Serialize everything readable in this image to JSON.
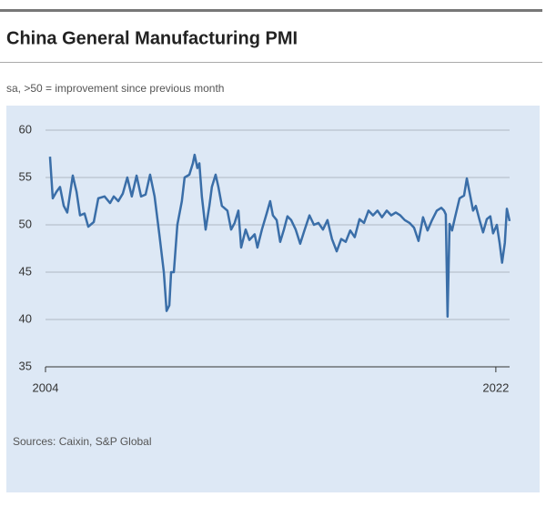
{
  "chart_data": {
    "type": "line",
    "title": "China General Manufacturing PMI",
    "subtitle": "sa, >50 = improvement since previous month",
    "source": "Sources: Caixin, S&P Global",
    "xlim": [
      2004,
      2022.55
    ],
    "xticks": [
      2004,
      2022
    ],
    "ylim": [
      35,
      60
    ],
    "yticks": [
      35,
      40,
      45,
      50,
      55,
      60
    ],
    "grid": true,
    "series": [
      {
        "name": "PMI",
        "color": "#3a6ea8",
        "x": [
          2004.18,
          2004.29,
          2004.44,
          2004.58,
          2004.73,
          2004.87,
          2005.09,
          2005.24,
          2005.38,
          2005.56,
          2005.71,
          2005.93,
          2006.11,
          2006.36,
          2006.58,
          2006.73,
          2006.91,
          2007.09,
          2007.27,
          2007.45,
          2007.64,
          2007.82,
          2008.0,
          2008.18,
          2008.36,
          2008.55,
          2008.73,
          2008.84,
          2008.95,
          2009.02,
          2009.13,
          2009.27,
          2009.45,
          2009.56,
          2009.75,
          2009.89,
          2009.96,
          2010.07,
          2010.15,
          2010.25,
          2010.4,
          2010.55,
          2010.65,
          2010.8,
          2010.91,
          2011.05,
          2011.27,
          2011.42,
          2011.56,
          2011.71,
          2011.82,
          2012.0,
          2012.15,
          2012.36,
          2012.47,
          2012.65,
          2012.84,
          2012.98,
          2013.09,
          2013.24,
          2013.38,
          2013.53,
          2013.67,
          2013.82,
          2014.0,
          2014.18,
          2014.36,
          2014.55,
          2014.73,
          2014.91,
          2015.09,
          2015.27,
          2015.45,
          2015.64,
          2015.82,
          2016.0,
          2016.18,
          2016.36,
          2016.55,
          2016.73,
          2016.91,
          2017.09,
          2017.27,
          2017.45,
          2017.64,
          2017.82,
          2018.0,
          2018.18,
          2018.36,
          2018.55,
          2018.73,
          2018.91,
          2019.09,
          2019.27,
          2019.45,
          2019.64,
          2019.82,
          2019.93,
          2020.0,
          2020.07,
          2020.15,
          2020.25,
          2020.36,
          2020.55,
          2020.73,
          2020.84,
          2020.98,
          2021.09,
          2021.2,
          2021.35,
          2021.49,
          2021.64,
          2021.78,
          2021.89,
          2022.04,
          2022.15,
          2022.25,
          2022.36,
          2022.44,
          2022.55
        ],
        "values": [
          57.2,
          52.8,
          53.5,
          54.0,
          52.0,
          51.3,
          55.2,
          53.5,
          51.0,
          51.2,
          49.8,
          50.3,
          52.8,
          53.0,
          52.3,
          53.0,
          52.5,
          53.3,
          55.0,
          53.0,
          55.2,
          53.0,
          53.2,
          55.3,
          53.0,
          49.0,
          45.0,
          40.9,
          41.5,
          45.0,
          45.0,
          50.0,
          52.5,
          55.0,
          55.3,
          56.5,
          57.4,
          56.0,
          56.5,
          53.0,
          49.5,
          52.0,
          54.0,
          55.3,
          54.0,
          52.0,
          51.5,
          49.5,
          50.2,
          51.5,
          47.6,
          49.5,
          48.4,
          49.0,
          47.6,
          49.5,
          51.2,
          52.5,
          51.0,
          50.5,
          48.2,
          49.5,
          50.9,
          50.5,
          49.5,
          48.0,
          49.5,
          51.0,
          50.0,
          50.2,
          49.5,
          50.5,
          48.5,
          47.2,
          48.5,
          48.2,
          49.4,
          48.7,
          50.6,
          50.2,
          51.5,
          51.0,
          51.5,
          50.8,
          51.5,
          51.0,
          51.3,
          51.0,
          50.5,
          50.2,
          49.7,
          48.3,
          50.8,
          49.4,
          50.5,
          51.5,
          51.8,
          51.5,
          51.1,
          40.3,
          50.1,
          49.4,
          50.7,
          52.8,
          53.1,
          54.9,
          53.0,
          51.5,
          52.0,
          50.5,
          49.2,
          50.6,
          50.9,
          49.1,
          50.0,
          48.1,
          46.0,
          48.1,
          51.7,
          50.4
        ]
      }
    ]
  }
}
